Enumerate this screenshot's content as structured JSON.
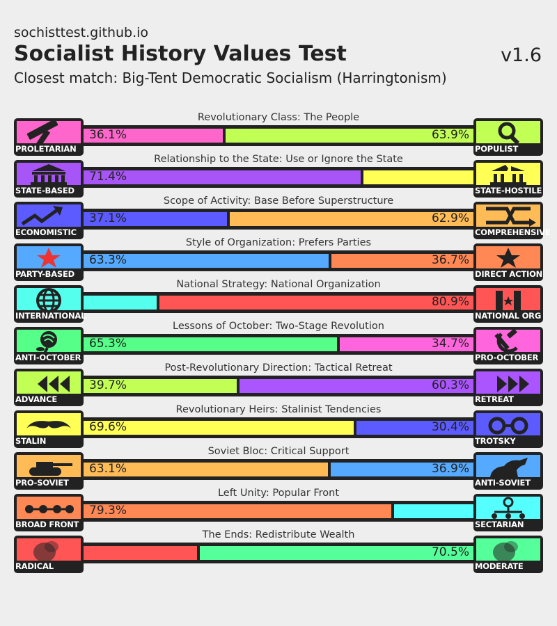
{
  "header": {
    "site": "sochisttest.github.io",
    "title": "Socialist History Values Test",
    "version": "v1.6",
    "closest_match": "Closest match: Big-Tent Democratic Socialism (Harringtonism)"
  },
  "icons": {
    "proletarian": "hammer-icon",
    "populist": "magnifier-icon",
    "state_based": "government-building-icon",
    "state_hostile": "broken-building-icon",
    "economistic": "rising-arrow-icon",
    "comprehensive": "crossing-arrows-icon",
    "party_based": "red-star-icon",
    "direct_action": "black-star-icon",
    "international": "globe-icon",
    "national_org": "flag-star-icon",
    "anti_october": "rose-icon",
    "pro_october": "hammer-sickle-icon",
    "advance": "triangles-left-icon",
    "retreat": "triangles-right-icon",
    "stalin": "mustache-icon",
    "trotsky": "round-glasses-icon",
    "pro_soviet": "tank-icon",
    "anti_soviet": "horse-icon",
    "broad_front": "linked-dots-icon",
    "sectarian": "network-node-icon",
    "radical": "portrait-icon",
    "moderate": "portrait-icon"
  },
  "chart_data": {
    "type": "bar",
    "orientation": "horizontal-stacked",
    "xlim": [
      0,
      100
    ],
    "unit": "%",
    "axes": [
      {
        "name": "Revolutionary Class: The People",
        "left_label": "PROLETARIAN",
        "right_label": "POPULIST",
        "left_value": 36.1,
        "right_value": 63.9,
        "left_text": "36.1%",
        "right_text": "63.9%",
        "left_color": "#ff66cc",
        "right_color": "#c2ff55"
      },
      {
        "name": "Relationship to the State: Use or Ignore the State",
        "left_label": "STATE-BASED",
        "right_label": "STATE-HOSTILE",
        "left_value": 71.4,
        "right_value": 28.6,
        "left_text": "71.4%",
        "right_text": "",
        "left_color": "#a855f7",
        "right_color": "#ffff55"
      },
      {
        "name": "Scope of Activity: Base Before Superstructure",
        "left_label": "ECONOMISTIC",
        "right_label": "COMPREHENSIVE",
        "left_value": 37.1,
        "right_value": 62.9,
        "left_text": "37.1%",
        "right_text": "62.9%",
        "left_color": "#5b5bff",
        "right_color": "#ffbb55"
      },
      {
        "name": "Style of Organization: Prefers Parties",
        "left_label": "PARTY-BASED",
        "right_label": "DIRECT ACTION",
        "left_value": 63.3,
        "right_value": 36.7,
        "left_text": "63.3%",
        "right_text": "36.7%",
        "left_color": "#55aaff",
        "right_color": "#ff8855"
      },
      {
        "name": "National Strategy: National Organization",
        "left_label": "INTERNATIONAL",
        "right_label": "NATIONAL ORG",
        "left_value": 19.1,
        "right_value": 80.9,
        "left_text": "",
        "right_text": "80.9%",
        "left_color": "#55ffee",
        "right_color": "#ff5555"
      },
      {
        "name": "Lessons of October: Two-Stage Revolution",
        "left_label": "ANTI-OCTOBER",
        "right_label": "PRO-OCTOBER",
        "left_value": 65.3,
        "right_value": 34.7,
        "left_text": "65.3%",
        "right_text": "34.7%",
        "left_color": "#55ff88",
        "right_color": "#ff66dd"
      },
      {
        "name": "Post-Revolutionary Direction: Tactical Retreat",
        "left_label": "ADVANCE",
        "right_label": "RETREAT",
        "left_value": 39.7,
        "right_value": 60.3,
        "left_text": "39.7%",
        "right_text": "60.3%",
        "left_color": "#c2ff55",
        "right_color": "#aa55ff"
      },
      {
        "name": "Revolutionary Heirs: Stalinist Tendencies",
        "left_label": "STALIN",
        "right_label": "TROTSKY",
        "left_value": 69.6,
        "right_value": 30.4,
        "left_text": "69.6%",
        "right_text": "30.4%",
        "left_color": "#ffff55",
        "right_color": "#5b5bff"
      },
      {
        "name": "Soviet Bloc: Critical Support",
        "left_label": "PRO-SOVIET",
        "right_label": "ANTI-SOVIET",
        "left_value": 63.1,
        "right_value": 36.9,
        "left_text": "63.1%",
        "right_text": "36.9%",
        "left_color": "#ffbb55",
        "right_color": "#55aaff"
      },
      {
        "name": "Left Unity: Popular Front",
        "left_label": "BROAD FRONT",
        "right_label": "SECTARIAN",
        "left_value": 79.3,
        "right_value": 20.7,
        "left_text": "79.3%",
        "right_text": "",
        "left_color": "#ff8855",
        "right_color": "#55ffff"
      },
      {
        "name": "The Ends: Redistribute Wealth",
        "left_label": "RADICAL",
        "right_label": "MODERATE",
        "left_value": 29.5,
        "right_value": 70.5,
        "left_text": "",
        "right_text": "70.5%",
        "left_color": "#ff5555",
        "right_color": "#55ff99"
      }
    ]
  }
}
